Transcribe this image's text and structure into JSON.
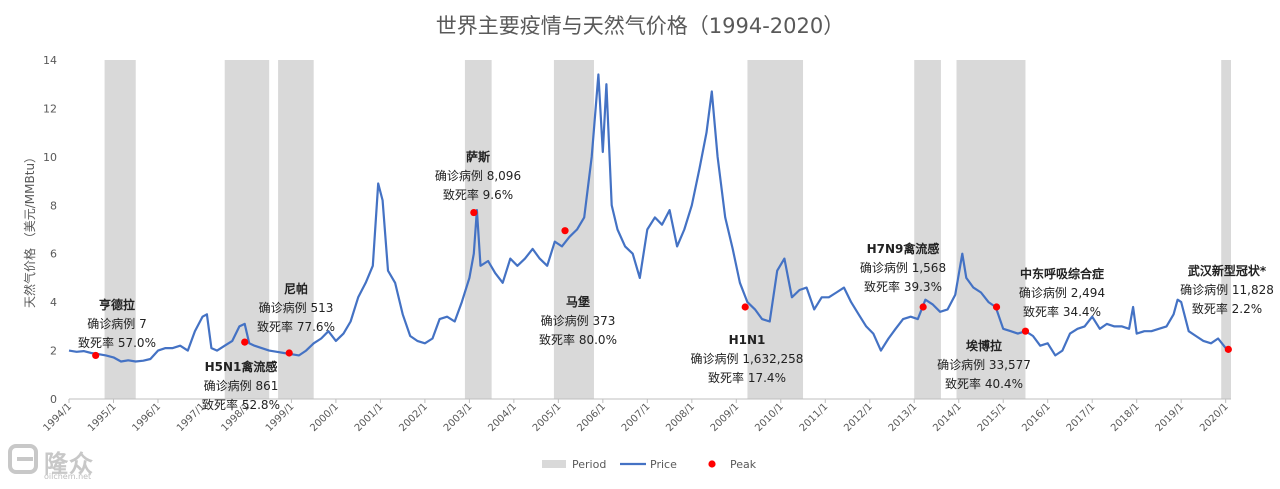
{
  "chart_data": {
    "type": "line",
    "title": "世界主要疫情与天然气价格（1994-2020）",
    "ylabel": "天然气价格 （美元/MMBtu）",
    "xlabel": "",
    "ylim": [
      0,
      14
    ],
    "xlim": [
      1994.0,
      2020.12
    ],
    "yticks": [
      0,
      2,
      4,
      6,
      8,
      10,
      12,
      14
    ],
    "xticks": [
      "1994/1",
      "1995/1",
      "1996/1",
      "1997/1",
      "1998/1",
      "1999/1",
      "2000/1",
      "2001/1",
      "2002/1",
      "2003/1",
      "2004/1",
      "2005/1",
      "2006/1",
      "2007/1",
      "2008/1",
      "2009/1",
      "2010/1",
      "2011/1",
      "2012/1",
      "2013/1",
      "2014/1",
      "2015/1",
      "2016/1",
      "2017/1",
      "2018/1",
      "2019/1",
      "2020/1"
    ],
    "legend": {
      "position": "bottom",
      "items": [
        {
          "label": "Period",
          "kind": "rect",
          "color": "#d9d9d9"
        },
        {
          "label": "Price",
          "kind": "line",
          "color": "#4472c4"
        },
        {
          "label": "Peak",
          "kind": "dot",
          "color": "#ff0000"
        }
      ]
    },
    "periods": [
      {
        "start": 1994.8,
        "end": 1995.5
      },
      {
        "start": 1997.5,
        "end": 1998.5
      },
      {
        "start": 1998.7,
        "end": 1999.5
      },
      {
        "start": 2002.9,
        "end": 2003.5
      },
      {
        "start": 2004.9,
        "end": 2005.8
      },
      {
        "start": 2009.25,
        "end": 2010.5
      },
      {
        "start": 2013.0,
        "end": 2013.6
      },
      {
        "start": 2013.95,
        "end": 2015.5
      },
      {
        "start": 2019.9,
        "end": 2020.12
      }
    ],
    "series": [
      {
        "name": "Price",
        "color": "#4472c4",
        "points": [
          [
            1994.0,
            2.0
          ],
          [
            1994.17,
            1.95
          ],
          [
            1994.33,
            1.98
          ],
          [
            1994.5,
            1.9
          ],
          [
            1994.67,
            1.85
          ],
          [
            1994.83,
            1.8
          ],
          [
            1995.0,
            1.72
          ],
          [
            1995.17,
            1.55
          ],
          [
            1995.33,
            1.6
          ],
          [
            1995.5,
            1.55
          ],
          [
            1995.67,
            1.58
          ],
          [
            1995.83,
            1.65
          ],
          [
            1996.0,
            2.0
          ],
          [
            1996.17,
            2.1
          ],
          [
            1996.33,
            2.1
          ],
          [
            1996.5,
            2.2
          ],
          [
            1996.67,
            2.0
          ],
          [
            1996.83,
            2.8
          ],
          [
            1997.0,
            3.4
          ],
          [
            1997.1,
            3.5
          ],
          [
            1997.2,
            2.1
          ],
          [
            1997.33,
            2.0
          ],
          [
            1997.5,
            2.2
          ],
          [
            1997.67,
            2.4
          ],
          [
            1997.83,
            3.0
          ],
          [
            1997.95,
            3.1
          ],
          [
            1998.05,
            2.3
          ],
          [
            1998.17,
            2.2
          ],
          [
            1998.33,
            2.1
          ],
          [
            1998.5,
            2.0
          ],
          [
            1998.67,
            1.95
          ],
          [
            1998.83,
            1.9
          ],
          [
            1999.0,
            1.85
          ],
          [
            1999.17,
            1.8
          ],
          [
            1999.33,
            2.0
          ],
          [
            1999.5,
            2.3
          ],
          [
            1999.67,
            2.5
          ],
          [
            1999.83,
            2.8
          ],
          [
            2000.0,
            2.4
          ],
          [
            2000.17,
            2.7
          ],
          [
            2000.33,
            3.2
          ],
          [
            2000.5,
            4.2
          ],
          [
            2000.67,
            4.8
          ],
          [
            2000.83,
            5.5
          ],
          [
            2000.95,
            8.9
          ],
          [
            2001.05,
            8.2
          ],
          [
            2001.17,
            5.3
          ],
          [
            2001.33,
            4.8
          ],
          [
            2001.5,
            3.5
          ],
          [
            2001.67,
            2.6
          ],
          [
            2001.83,
            2.4
          ],
          [
            2002.0,
            2.3
          ],
          [
            2002.17,
            2.5
          ],
          [
            2002.33,
            3.3
          ],
          [
            2002.5,
            3.4
          ],
          [
            2002.67,
            3.2
          ],
          [
            2002.83,
            4.0
          ],
          [
            2003.0,
            5.0
          ],
          [
            2003.1,
            6.0
          ],
          [
            2003.17,
            7.8
          ],
          [
            2003.25,
            5.5
          ],
          [
            2003.42,
            5.7
          ],
          [
            2003.58,
            5.2
          ],
          [
            2003.75,
            4.8
          ],
          [
            2003.92,
            5.8
          ],
          [
            2004.08,
            5.5
          ],
          [
            2004.25,
            5.8
          ],
          [
            2004.42,
            6.2
          ],
          [
            2004.58,
            5.8
          ],
          [
            2004.75,
            5.5
          ],
          [
            2004.92,
            6.5
          ],
          [
            2005.08,
            6.3
          ],
          [
            2005.25,
            6.7
          ],
          [
            2005.42,
            7.0
          ],
          [
            2005.58,
            7.5
          ],
          [
            2005.75,
            10.0
          ],
          [
            2005.9,
            13.4
          ],
          [
            2006.0,
            10.2
          ],
          [
            2006.08,
            13.0
          ],
          [
            2006.2,
            8.0
          ],
          [
            2006.33,
            7.0
          ],
          [
            2006.5,
            6.3
          ],
          [
            2006.67,
            6.0
          ],
          [
            2006.83,
            5.0
          ],
          [
            2007.0,
            7.0
          ],
          [
            2007.17,
            7.5
          ],
          [
            2007.33,
            7.2
          ],
          [
            2007.5,
            7.8
          ],
          [
            2007.67,
            6.3
          ],
          [
            2007.83,
            7.0
          ],
          [
            2008.0,
            8.0
          ],
          [
            2008.17,
            9.5
          ],
          [
            2008.33,
            11.0
          ],
          [
            2008.45,
            12.7
          ],
          [
            2008.58,
            10.0
          ],
          [
            2008.75,
            7.5
          ],
          [
            2008.92,
            6.2
          ],
          [
            2009.08,
            4.8
          ],
          [
            2009.25,
            4.0
          ],
          [
            2009.42,
            3.7
          ],
          [
            2009.58,
            3.3
          ],
          [
            2009.75,
            3.2
          ],
          [
            2009.92,
            5.3
          ],
          [
            2010.08,
            5.8
          ],
          [
            2010.25,
            4.2
          ],
          [
            2010.42,
            4.5
          ],
          [
            2010.58,
            4.6
          ],
          [
            2010.75,
            3.7
          ],
          [
            2010.92,
            4.2
          ],
          [
            2011.08,
            4.2
          ],
          [
            2011.25,
            4.4
          ],
          [
            2011.42,
            4.6
          ],
          [
            2011.58,
            4.0
          ],
          [
            2011.75,
            3.5
          ],
          [
            2011.92,
            3.0
          ],
          [
            2012.08,
            2.7
          ],
          [
            2012.25,
            2.0
          ],
          [
            2012.42,
            2.5
          ],
          [
            2012.58,
            2.9
          ],
          [
            2012.75,
            3.3
          ],
          [
            2012.92,
            3.4
          ],
          [
            2013.08,
            3.3
          ],
          [
            2013.25,
            4.1
          ],
          [
            2013.42,
            3.9
          ],
          [
            2013.58,
            3.6
          ],
          [
            2013.75,
            3.7
          ],
          [
            2013.92,
            4.3
          ],
          [
            2014.08,
            6.0
          ],
          [
            2014.17,
            5.0
          ],
          [
            2014.33,
            4.6
          ],
          [
            2014.5,
            4.4
          ],
          [
            2014.67,
            4.0
          ],
          [
            2014.83,
            3.8
          ],
          [
            2015.0,
            2.9
          ],
          [
            2015.17,
            2.8
          ],
          [
            2015.33,
            2.7
          ],
          [
            2015.5,
            2.8
          ],
          [
            2015.67,
            2.6
          ],
          [
            2015.83,
            2.2
          ],
          [
            2016.0,
            2.3
          ],
          [
            2016.17,
            1.8
          ],
          [
            2016.33,
            2.0
          ],
          [
            2016.5,
            2.7
          ],
          [
            2016.67,
            2.9
          ],
          [
            2016.83,
            3.0
          ],
          [
            2017.0,
            3.4
          ],
          [
            2017.17,
            2.9
          ],
          [
            2017.33,
            3.1
          ],
          [
            2017.5,
            3.0
          ],
          [
            2017.67,
            3.0
          ],
          [
            2017.83,
            2.9
          ],
          [
            2017.92,
            3.8
          ],
          [
            2018.0,
            2.7
          ],
          [
            2018.17,
            2.8
          ],
          [
            2018.33,
            2.8
          ],
          [
            2018.5,
            2.9
          ],
          [
            2018.67,
            3.0
          ],
          [
            2018.83,
            3.5
          ],
          [
            2018.92,
            4.1
          ],
          [
            2019.0,
            4.0
          ],
          [
            2019.17,
            2.8
          ],
          [
            2019.33,
            2.6
          ],
          [
            2019.5,
            2.4
          ],
          [
            2019.67,
            2.3
          ],
          [
            2019.83,
            2.5
          ],
          [
            2020.0,
            2.1
          ],
          [
            2020.08,
            2.05
          ]
        ]
      }
    ],
    "peaks": [
      [
        1994.6,
        1.8
      ],
      [
        1997.95,
        2.35
      ],
      [
        1998.95,
        1.9
      ],
      [
        2003.1,
        7.7
      ],
      [
        2005.15,
        6.95
      ],
      [
        2009.2,
        3.8
      ],
      [
        2013.2,
        3.8
      ],
      [
        2014.85,
        3.8
      ],
      [
        2015.5,
        2.8
      ],
      [
        2020.06,
        2.05
      ]
    ]
  },
  "annotations": [
    {
      "name": "亨德拉",
      "cases": "确诊病例 7",
      "rate": "致死率 57.0%"
    },
    {
      "name": "H5N1禽流感",
      "cases": "确诊病例 861",
      "rate": "致死率 52.8%"
    },
    {
      "name": "尼帕",
      "cases": "确诊病例 513",
      "rate": "致死率 77.6%"
    },
    {
      "name": "萨斯",
      "cases": "确诊病例 8,096",
      "rate": "致死率 9.6%"
    },
    {
      "name": "马堡",
      "cases": "确诊病例 373",
      "rate": "致死率 80.0%"
    },
    {
      "name": "H1N1",
      "cases": "确诊病例 1,632,258",
      "rate": "致死率 17.4%"
    },
    {
      "name": "H7N9禽流感",
      "cases": "确诊病例 1,568",
      "rate": "致死率 39.3%"
    },
    {
      "name": "埃博拉",
      "cases": "确诊病例 33,577",
      "rate": "致死率 40.4%"
    },
    {
      "name": "中东呼吸综合症",
      "cases": "确诊病例 2,494",
      "rate": "致死率 34.4%"
    },
    {
      "name": "武汉新型冠状*",
      "cases": "确诊病例 11,828",
      "rate": "致死率 2.2%"
    }
  ],
  "watermark": {
    "brand": "隆众",
    "url": "oilchem.net"
  }
}
